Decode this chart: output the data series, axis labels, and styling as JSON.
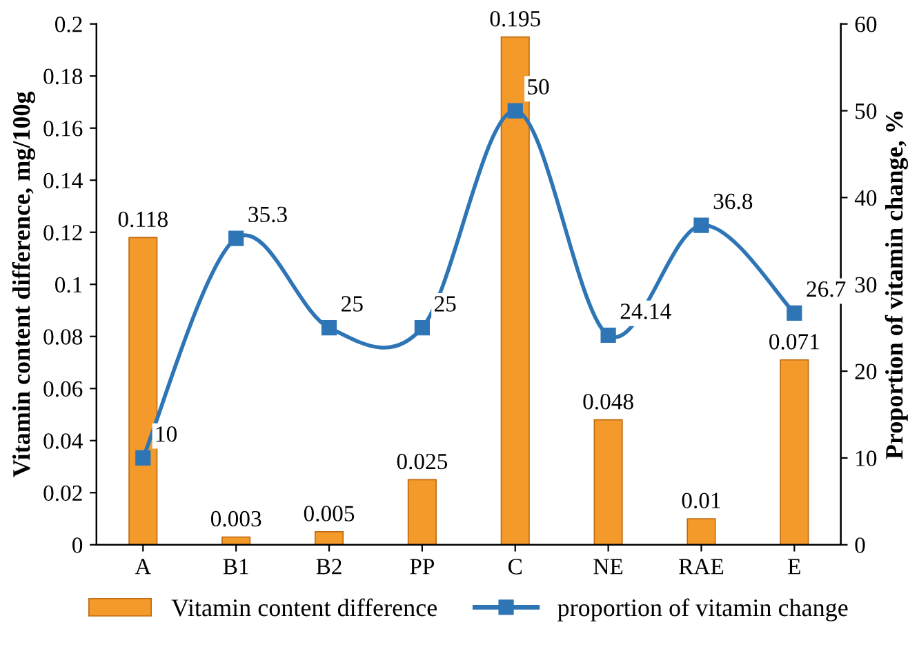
{
  "chart_data": {
    "type": "bar",
    "categories": [
      "A",
      "B1",
      "B2",
      "PP",
      "C",
      "NE",
      "RAE",
      "E"
    ],
    "series": [
      {
        "name": "Vitamin content difference",
        "color": "#f39a2b",
        "values": [
          0.118,
          0.003,
          0.005,
          0.025,
          0.195,
          0.048,
          0.01,
          0.071
        ]
      },
      {
        "name": "proportion of vitamin change",
        "color": "#2e75b6",
        "type": "line",
        "axis": "y2",
        "marker": "square",
        "values": [
          10,
          35.3,
          25,
          25,
          50,
          24.14,
          36.8,
          26.7
        ]
      }
    ],
    "ylabel": "Vitamin content difference, mg/100g",
    "y2label": "Proportion of vitamin change, %",
    "ylim": [
      0,
      0.2
    ],
    "yticks": [
      0,
      0.02,
      0.04,
      0.06,
      0.08,
      0.1,
      0.12,
      0.14,
      0.16,
      0.18,
      0.2
    ],
    "y2lim": [
      0,
      60
    ],
    "y2ticks": [
      0,
      10,
      20,
      30,
      40,
      50,
      60
    ],
    "data_labels": true,
    "grid": false,
    "legend": "bottom"
  }
}
